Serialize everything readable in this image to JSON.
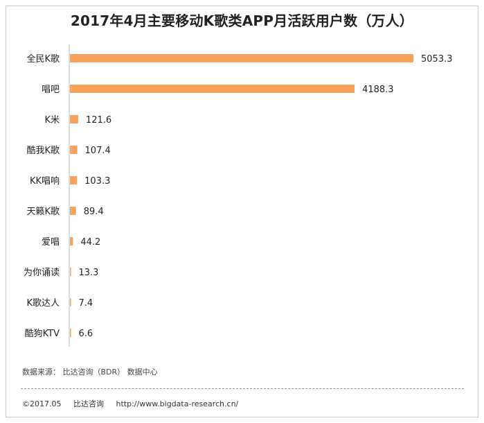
{
  "chart_data": {
    "type": "bar",
    "orientation": "horizontal",
    "title": "2017年4月主要移动K歌类APP月活跃用户数（万人）",
    "categories": [
      "全民K歌",
      "唱吧",
      "K米",
      "酷我K歌",
      "KK唱响",
      "天籁K歌",
      "爱唱",
      "为你诵读",
      "K歌达人",
      "酷狗KTV"
    ],
    "values": [
      5053.3,
      4188.3,
      121.6,
      107.4,
      103.3,
      89.4,
      44.2,
      13.3,
      7.4,
      6.6
    ],
    "value_labels": [
      "5053.3",
      "4188.3",
      "121.6",
      "107.4",
      "103.3",
      "89.4",
      "44.2",
      "13.3",
      "7.4",
      "6.6"
    ],
    "xlim": [
      0,
      5053.3
    ],
    "grid": false,
    "bar_color": "#f7a35c"
  },
  "source": "数据来源：  比达咨询（BDR） 数据中心",
  "footer": {
    "copyright": "©2017.05",
    "company": "比达咨询",
    "url": "http://www.bigdata-research.cn/"
  }
}
